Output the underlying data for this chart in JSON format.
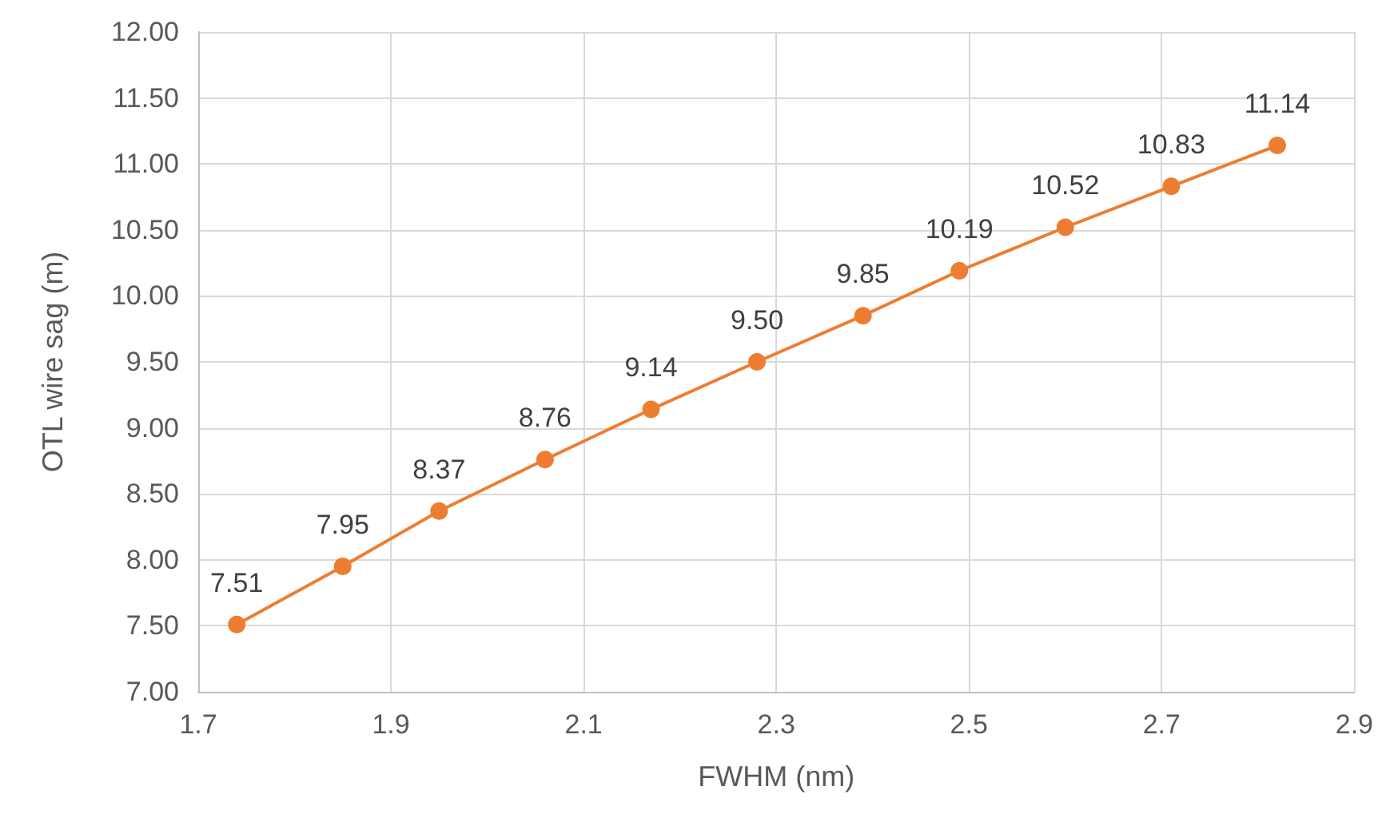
{
  "chart_data": {
    "type": "line",
    "xlabel": "FWHM (nm)",
    "ylabel": "OTL wire sag (m)",
    "x": [
      1.74,
      1.85,
      1.95,
      2.06,
      2.17,
      2.28,
      2.39,
      2.49,
      2.6,
      2.71,
      2.82
    ],
    "series": [
      {
        "color": "#ed7d31",
        "values": [
          7.51,
          7.95,
          8.37,
          8.76,
          9.14,
          9.5,
          9.85,
          10.19,
          10.52,
          10.83,
          11.14
        ],
        "value_labels": [
          "7.51",
          "7.95",
          "8.37",
          "8.76",
          "9.14",
          "9.50",
          "9.85",
          "10.19",
          "10.52",
          "10.83",
          "11.14"
        ]
      }
    ],
    "xlim": [
      1.7,
      2.9
    ],
    "xticks": [
      1.7,
      1.9,
      2.1,
      2.3,
      2.5,
      2.7,
      2.9
    ],
    "ylim": [
      7,
      12
    ],
    "yticks": [
      {
        "value": 7,
        "label": "7.00"
      },
      {
        "value": 7.5,
        "label": "7.50"
      },
      {
        "value": 8,
        "label": "8.00"
      },
      {
        "value": 8.5,
        "label": "8.50"
      },
      {
        "value": 9,
        "label": "9.00"
      },
      {
        "value": 9.5,
        "label": "9.50"
      },
      {
        "value": 10,
        "label": "10.00"
      },
      {
        "value": 10.5,
        "label": "10.50"
      },
      {
        "value": 11,
        "label": "11.00"
      },
      {
        "value": 11.5,
        "label": "11.50"
      },
      {
        "value": 12,
        "label": "12.00"
      }
    ],
    "grid": true,
    "marker": "circle",
    "line_style": "solid"
  }
}
